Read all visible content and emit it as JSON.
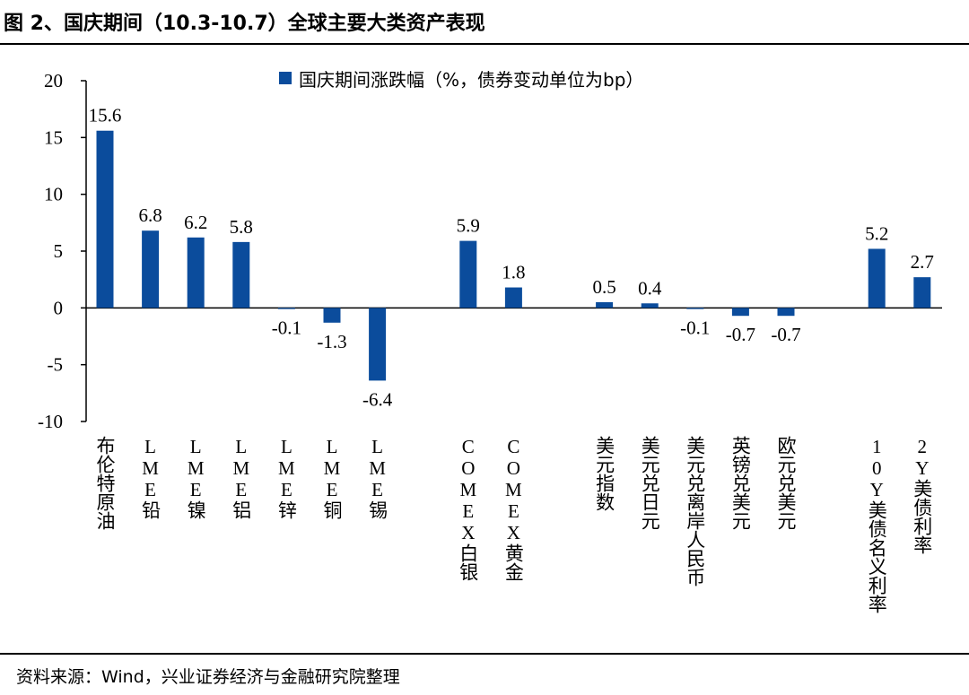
{
  "header": {
    "title": "图 2、国庆期间（10.3-10.7）全球主要大类资产表现"
  },
  "footer": {
    "source": "资料来源：Wind，兴业证券经济与金融研究院整理"
  },
  "colors": {
    "bar": "#0B4C9C",
    "axis": "#000000"
  },
  "chart_data": {
    "type": "bar",
    "title": "",
    "xlabel": "",
    "ylabel": "",
    "ylim": [
      -10,
      20
    ],
    "yticks": [
      -10,
      -5,
      0,
      5,
      10,
      15,
      20
    ],
    "grid": false,
    "legend_position": "top-center",
    "categories": [
      "布伦特原油",
      "LME铅",
      "LME镍",
      "LME铝",
      "LME锌",
      "LME铜",
      "LME锡",
      "",
      "COMEX白银",
      "COMEX黄金",
      "",
      "美元指数",
      "美元兑日元",
      "美元兑离岸人民币",
      "英镑兑美元",
      "欧元兑美元",
      "",
      "10Y美债名义利率",
      "2Y美债利率"
    ],
    "series": [
      {
        "name": "国庆期间涨跌幅（%，债券变动单位为bp）",
        "values": [
          15.6,
          6.8,
          6.2,
          5.8,
          -0.1,
          -1.3,
          -6.4,
          null,
          5.9,
          1.8,
          null,
          0.5,
          0.4,
          -0.1,
          -0.7,
          -0.7,
          null,
          5.2,
          2.7
        ]
      }
    ]
  }
}
